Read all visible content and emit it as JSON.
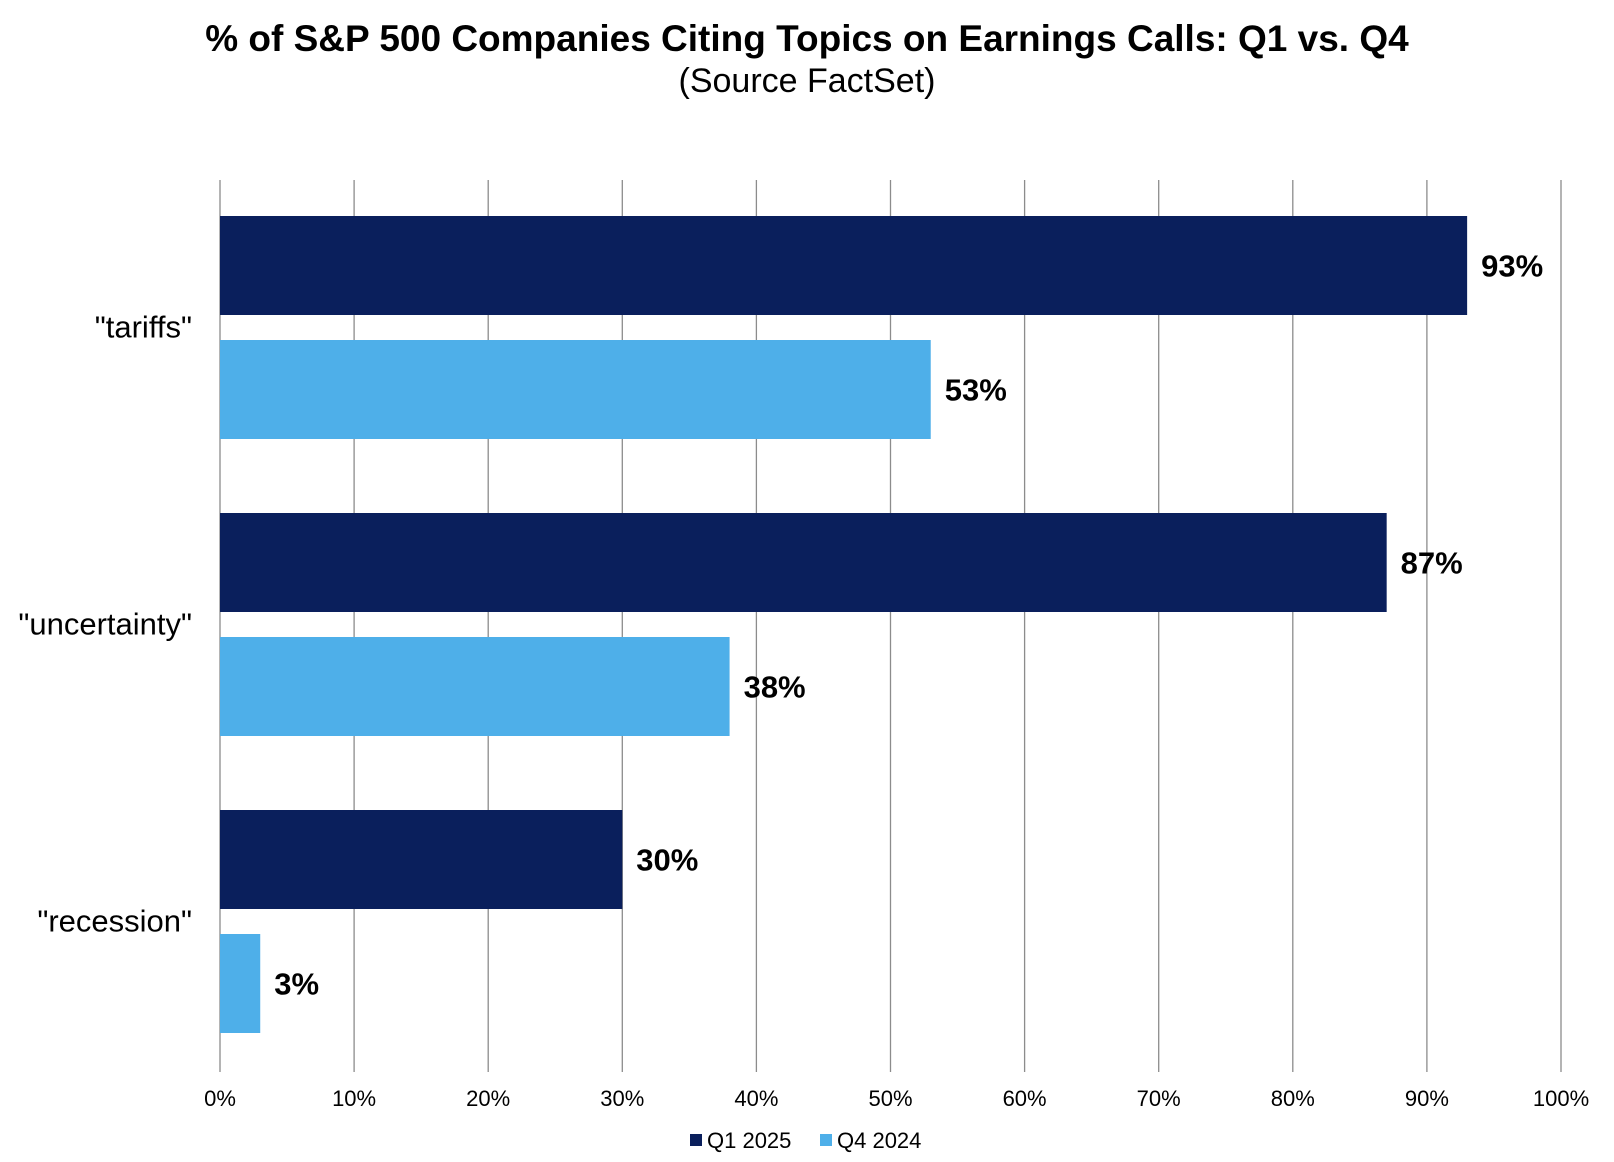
{
  "chart_data": {
    "type": "bar",
    "orientation": "horizontal",
    "title": "% of S&P 500 Companies Citing Topics on Earnings Calls: Q1 vs. Q4",
    "subtitle": "(Source FactSet)",
    "categories": [
      "\"tariffs\"",
      "\"uncertainty\"",
      "\"recession\""
    ],
    "series": [
      {
        "name": "Q1 2025",
        "color": "#0a1f5c",
        "values": [
          93,
          87,
          30
        ],
        "labels": [
          "93%",
          "87%",
          "30%"
        ]
      },
      {
        "name": "Q4 2024",
        "color": "#4eafe9",
        "values": [
          53,
          38,
          3
        ],
        "labels": [
          "53%",
          "38%",
          "3%"
        ]
      }
    ],
    "xlim": [
      0,
      100
    ],
    "x_ticks": [
      "0%",
      "10%",
      "20%",
      "30%",
      "40%",
      "50%",
      "60%",
      "70%",
      "80%",
      "90%",
      "100%"
    ],
    "grid": "vertical",
    "legend": "bottom"
  }
}
